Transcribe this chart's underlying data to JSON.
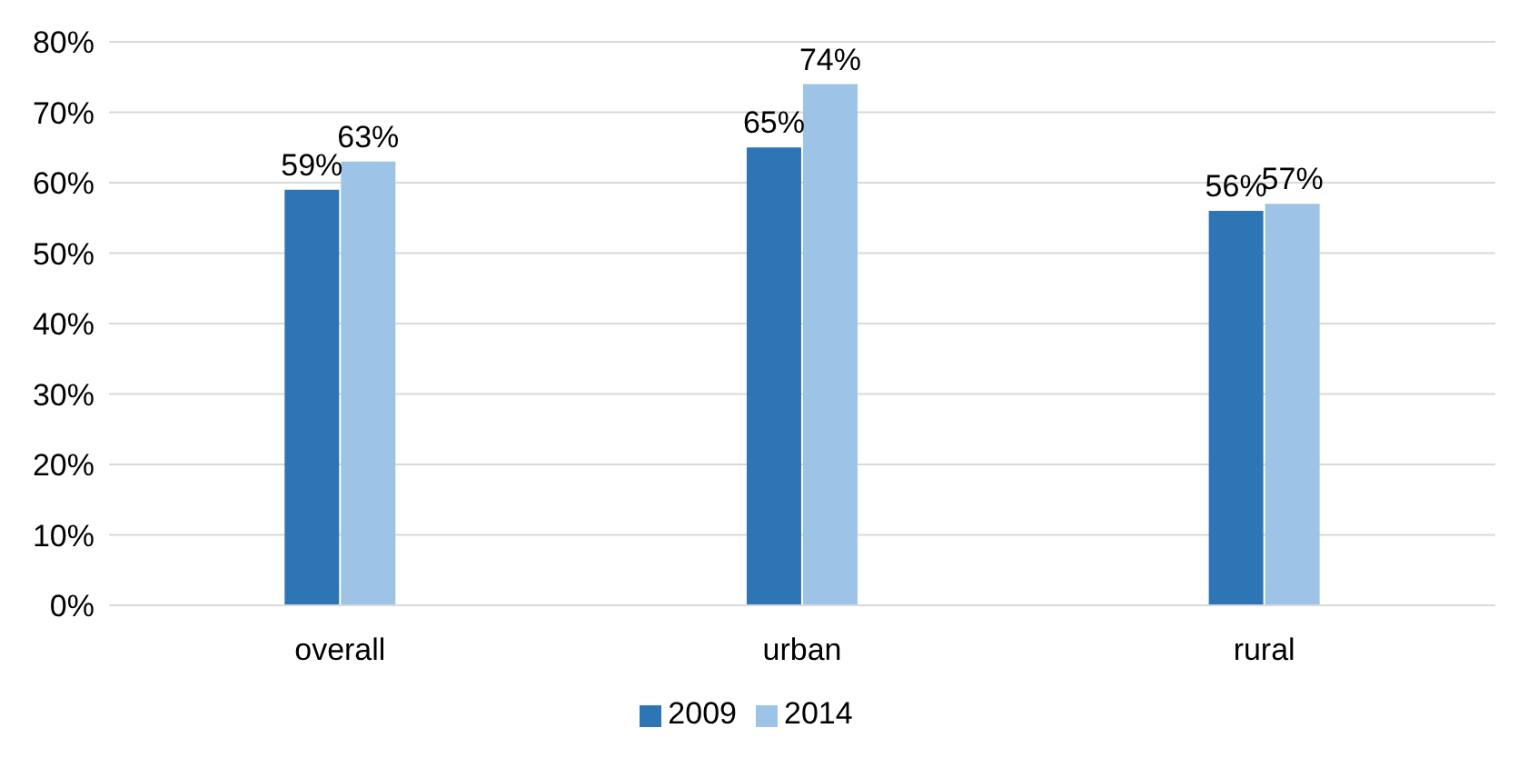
{
  "chart_data": {
    "type": "bar",
    "categories": [
      "overall",
      "urban",
      "rural"
    ],
    "series": [
      {
        "name": "2009",
        "color": "#2e75b6",
        "values": [
          59,
          65,
          56
        ],
        "value_labels": [
          "59%",
          "65%",
          "56%"
        ]
      },
      {
        "name": "2014",
        "color": "#9dc3e6",
        "values": [
          63,
          74,
          57
        ],
        "value_labels": [
          "63%",
          "74%",
          "57%"
        ]
      }
    ],
    "ylim": [
      0,
      80
    ],
    "yticks": [
      {
        "value": 0,
        "label": "0%"
      },
      {
        "value": 10,
        "label": "10%"
      },
      {
        "value": 20,
        "label": "20%"
      },
      {
        "value": 30,
        "label": "30%"
      },
      {
        "value": 40,
        "label": "40%"
      },
      {
        "value": 50,
        "label": "50%"
      },
      {
        "value": 60,
        "label": "60%"
      },
      {
        "value": 70,
        "label": "70%"
      },
      {
        "value": 80,
        "label": "80%"
      }
    ],
    "grid": "y",
    "legend": "bottom"
  }
}
